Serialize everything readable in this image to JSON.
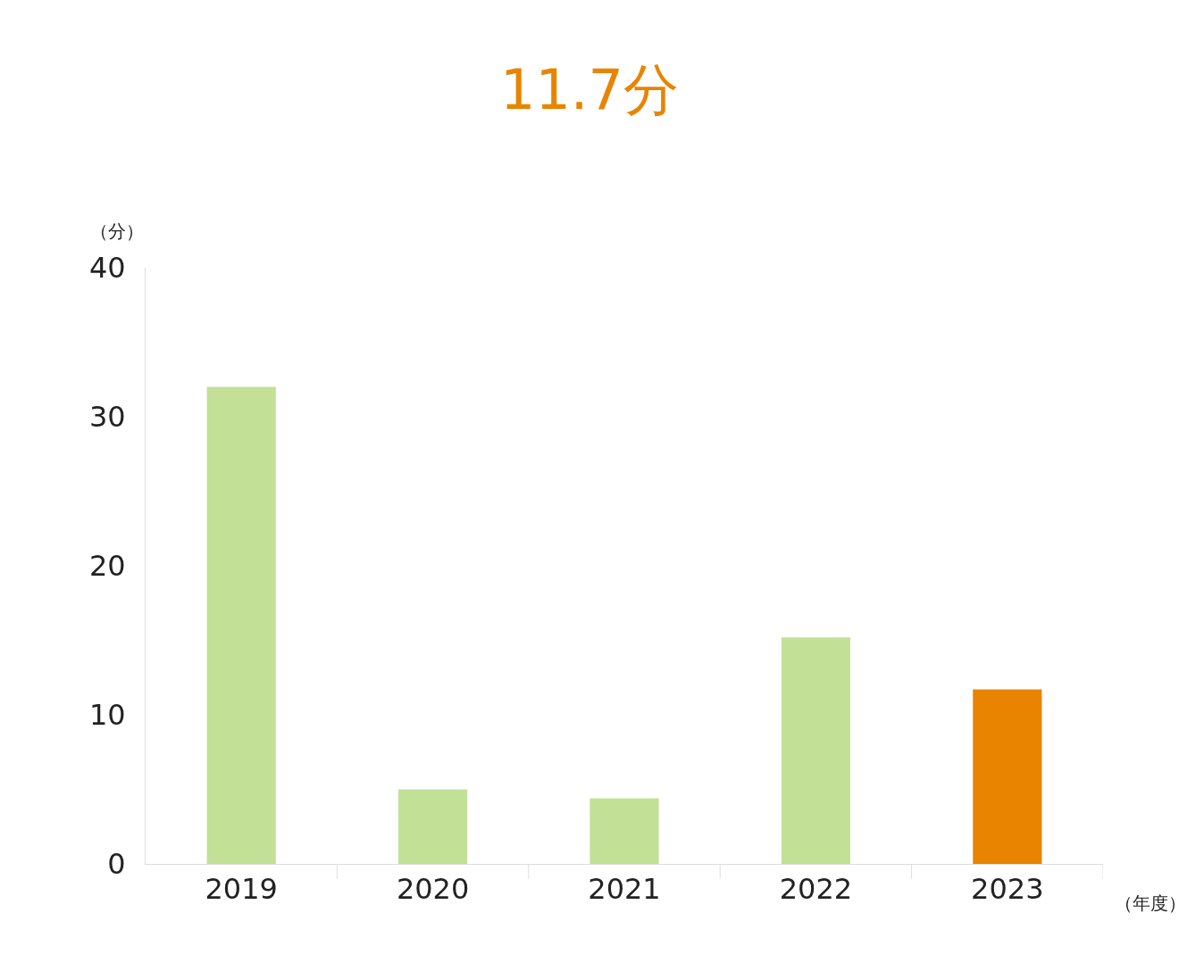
{
  "chart_data": {
    "type": "bar",
    "title": "11.7分",
    "ylabel": "（分）",
    "xlabel": "（年度）",
    "categories": [
      "2019",
      "2020",
      "2021",
      "2022",
      "2023"
    ],
    "values": [
      32,
      5,
      4.4,
      15.2,
      11.7
    ],
    "colors": [
      "#c2e096",
      "#c2e096",
      "#c2e096",
      "#c2e096",
      "#e88400"
    ],
    "ylim": [
      0,
      40
    ],
    "yticks": [
      0,
      10,
      20,
      30,
      40
    ]
  }
}
